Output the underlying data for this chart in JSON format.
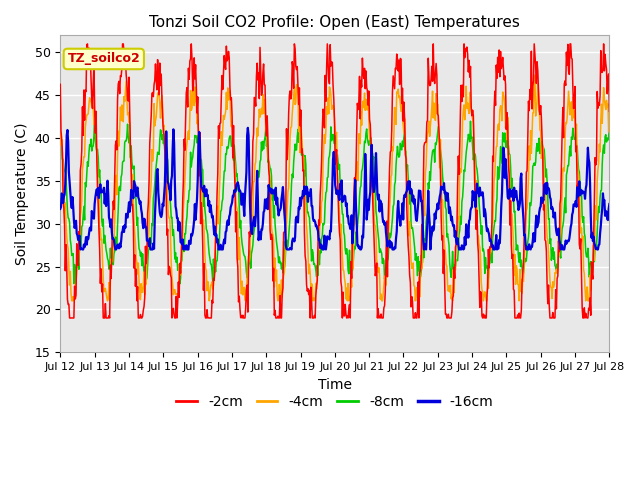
{
  "title": "Tonzi Soil CO2 Profile: Open (East) Temperatures",
  "xlabel": "Time",
  "ylabel": "Soil Temperature (C)",
  "ylim": [
    15,
    52
  ],
  "background_color": "#e8e8e8",
  "series_colors": [
    "#ff0000",
    "#ffa500",
    "#00cc00",
    "#0000dd"
  ],
  "legend_labels": [
    "-2cm",
    "-4cm",
    "-8cm",
    "-16cm"
  ],
  "annotation_text": "TZ_soilco2",
  "annotation_color": "#cc0000",
  "annotation_bg": "#ffffcc",
  "annotation_border": "#cccc00",
  "yticks": [
    15,
    20,
    25,
    30,
    35,
    40,
    45,
    50
  ],
  "n_days": 16,
  "pts_per_hour": 2
}
